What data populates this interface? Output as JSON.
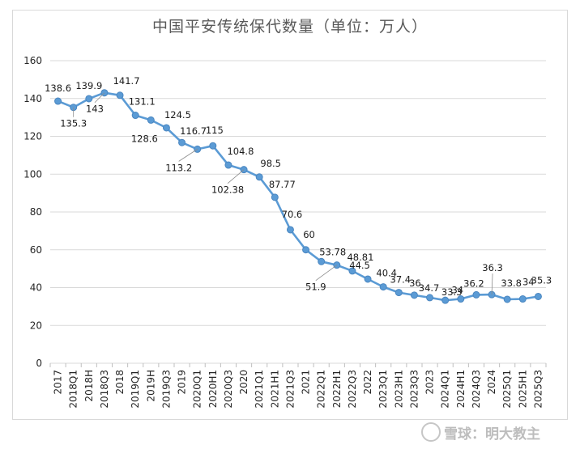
{
  "chart_data": {
    "type": "line",
    "title": "中国平安传统保代数量（单位：万人）",
    "xlabel": "",
    "ylabel": "",
    "ylim": [
      0,
      160
    ],
    "yticks": [
      0,
      20,
      40,
      60,
      80,
      100,
      120,
      140,
      160
    ],
    "grid": true,
    "legend": "none",
    "categories": [
      "2017",
      "2018Q1",
      "2018H",
      "2018Q3",
      "2018",
      "2019Q1",
      "2019H",
      "2019Q3",
      "2019",
      "2020Q1",
      "2020H1",
      "2020Q3",
      "2020",
      "2021Q1",
      "2021H1",
      "2021Q3",
      "2021",
      "2022Q1",
      "2022H1",
      "2022Q3",
      "2022",
      "2023Q1",
      "2023H1",
      "2023Q3",
      "2023",
      "2024Q1",
      "2024H1",
      "2024Q3",
      "2024",
      "2025Q1",
      "2025H1",
      "2025Q3"
    ],
    "series": [
      {
        "name": "传统保代数量",
        "color": "#5b9bd5",
        "values": [
          138.6,
          135.3,
          139.9,
          143,
          141.7,
          131.1,
          128.6,
          124.5,
          116.7,
          113.2,
          115,
          104.8,
          102.38,
          98.5,
          87.77,
          70.6,
          60,
          53.78,
          51.9,
          48.81,
          44.5,
          40.4,
          37.4,
          36,
          34.7,
          33.3,
          34,
          36.2,
          36.3,
          33.8,
          34,
          35.3
        ],
        "labels": [
          "138.6",
          "135.3",
          "139.9",
          "143",
          "141.7",
          "131.1",
          "128.6",
          "124.5",
          "116.7",
          "113.2",
          "115",
          "104.8",
          "102.38",
          "98.5",
          "87.77",
          "70.6",
          "60",
          "53.78",
          "51.9",
          "48.81",
          "44.5",
          "40.4",
          "37.4",
          "36",
          "34.7",
          "33.3",
          "34",
          "36.2",
          "36.3",
          "33.8",
          "34",
          "35.3"
        ]
      }
    ]
  },
  "watermark": {
    "text": "雪球：明大教主"
  }
}
